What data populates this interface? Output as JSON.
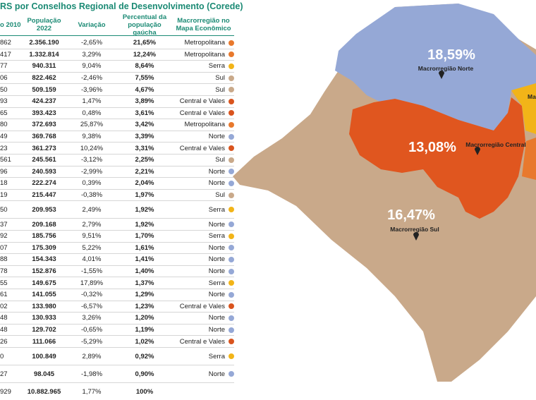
{
  "title": "RS por Conselhos Regional de Desenvolvimento (Corede)",
  "table": {
    "headers": [
      "o 2010",
      "População 2022",
      "Variação",
      "Percentual da população gaúcha",
      "Macrorregião no Mapa Econômico"
    ],
    "rows": [
      [
        "862",
        "2.356.190",
        "-2,65%",
        "21,65%",
        "Metropolitana"
      ],
      [
        "417",
        "1.332.814",
        "3,29%",
        "12,24%",
        "Metropolitana"
      ],
      [
        "77",
        "940.311",
        "9,04%",
        "8,64%",
        "Serra"
      ],
      [
        "06",
        "822.462",
        "-2,46%",
        "7,55%",
        "Sul"
      ],
      [
        "50",
        "509.159",
        "-3,96%",
        "4,67%",
        "Sul"
      ],
      [
        "93",
        "424.237",
        "1,47%",
        "3,89%",
        "Central e Vales"
      ],
      [
        "65",
        "393.423",
        "0,48%",
        "3,61%",
        "Central e Vales"
      ],
      [
        "80",
        "372.693",
        "25,87%",
        "3,42%",
        "Metropolitana"
      ],
      [
        "49",
        "369.768",
        "9,38%",
        "3,39%",
        "Norte"
      ],
      [
        "23",
        "361.273",
        "10,24%",
        "3,31%",
        "Central e Vales"
      ],
      [
        "561",
        "245.561",
        "-3,12%",
        "2,25%",
        "Sul"
      ],
      [
        "96",
        "240.593",
        "-2,99%",
        "2,21%",
        "Norte"
      ],
      [
        "18",
        "222.274",
        "0,39%",
        "2,04%",
        "Norte"
      ],
      [
        "19",
        "215.447",
        "-0,38%",
        "1,97%",
        "Sul"
      ],
      [
        "50",
        "209.953",
        "2,49%",
        "1,92%",
        "Serra"
      ],
      [
        "37",
        "209.168",
        "2,79%",
        "1,92%",
        "Norte"
      ],
      [
        "92",
        "185.756",
        "9,51%",
        "1,70%",
        "Serra"
      ],
      [
        "07",
        "175.309",
        "5,22%",
        "1,61%",
        "Norte"
      ],
      [
        "88",
        "154.343",
        "4,01%",
        "1,41%",
        "Norte"
      ],
      [
        "78",
        "152.876",
        "-1,55%",
        "1,40%",
        "Norte"
      ],
      [
        "55",
        "149.675",
        "17,89%",
        "1,37%",
        "Serra"
      ],
      [
        "61",
        "141.055",
        "-0,32%",
        "1,29%",
        "Norte"
      ],
      [
        "02",
        "133.980",
        "-6,57%",
        "1,23%",
        "Central e Vales"
      ],
      [
        "48",
        "130.933",
        "3,26%",
        "1,20%",
        "Norte"
      ],
      [
        "48",
        "129.702",
        "-0,65%",
        "1,19%",
        "Norte"
      ],
      [
        "26",
        "111.066",
        "-5,29%",
        "1,02%",
        "Central e Vales"
      ],
      [
        "0",
        "100.849",
        "2,89%",
        "0,92%",
        "Serra"
      ],
      [
        "27",
        "98.045",
        "-1,98%",
        "0,90%",
        "Norte"
      ],
      [
        "929",
        "10.882.965",
        "1,77%",
        "100%"
      ]
    ],
    "region_colors": {
      "Metropolitana": "#e8792d",
      "Serra": "#f2b418",
      "Sul": "#c9a98a",
      "Central e Vales": "#d9541e",
      "Norte": "#95a8d6"
    }
  },
  "map": {
    "labels": [
      {
        "value": "18,59%",
        "name": "Macrorregião Norte"
      },
      {
        "value": "13,08%",
        "name": "Macrorregião Central"
      },
      {
        "value": "16,47%",
        "name": "Macrorregião Sul"
      },
      {
        "name": "Ma"
      }
    ]
  }
}
